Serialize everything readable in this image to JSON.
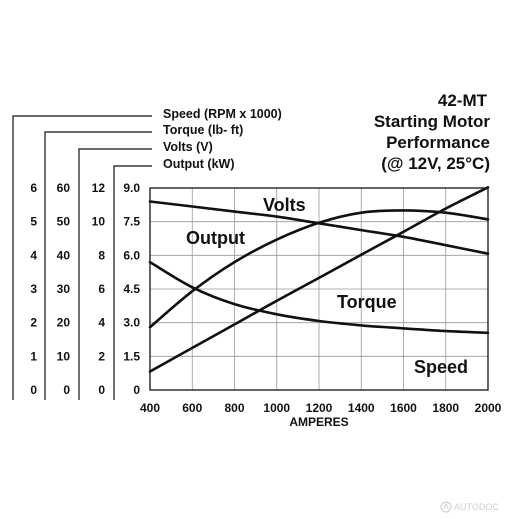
{
  "chart_data": {
    "type": "line",
    "title": [
      "42-MT",
      "Starting Motor",
      "Performance",
      "(@ 12V, 25°C)"
    ],
    "xlabel": "AMPERES",
    "x_ticks": [
      400,
      600,
      800,
      1000,
      1200,
      1400,
      1600,
      1800,
      2000
    ],
    "xlim": [
      400,
      2000
    ],
    "grid": true,
    "axes": [
      {
        "key": "speed",
        "label": "Speed (RPM x 1000)",
        "ticks": [
          "0",
          "1",
          "2",
          "3",
          "4",
          "5",
          "6"
        ]
      },
      {
        "key": "torque",
        "label": "Torque (lb- ft)",
        "ticks": [
          "0",
          "10",
          "20",
          "30",
          "40",
          "50",
          "60"
        ]
      },
      {
        "key": "volts",
        "label": "Volts (V)",
        "ticks": [
          "0",
          "2",
          "4",
          "6",
          "8",
          "10",
          "12"
        ]
      },
      {
        "key": "output",
        "label": "Output (kW)",
        "ticks": [
          "0",
          "1.5",
          "3.0",
          "4.5",
          "6.0",
          "7.5",
          "9.0"
        ]
      }
    ],
    "series": [
      {
        "name": "Volts",
        "axis": "volts",
        "x": [
          400,
          600,
          800,
          1000,
          1200,
          1400,
          1600,
          1800,
          2000
        ],
        "y": [
          11.2,
          10.9,
          10.6,
          10.3,
          9.9,
          9.5,
          9.1,
          8.6,
          8.1
        ]
      },
      {
        "name": "Output",
        "axis": "output",
        "x": [
          400,
          600,
          800,
          1000,
          1200,
          1400,
          1600,
          1800,
          2000
        ],
        "y": [
          2.8,
          4.4,
          5.7,
          6.7,
          7.45,
          7.9,
          8.0,
          7.9,
          7.6
        ]
      },
      {
        "name": "Torque",
        "axis": "torque",
        "x": [
          400,
          600,
          800,
          1000,
          1200,
          1400,
          1600,
          1800,
          2000
        ],
        "y": [
          5.5,
          12.5,
          19.5,
          26.5,
          33.3,
          40.2,
          47.0,
          53.9,
          60.2
        ]
      },
      {
        "name": "Speed",
        "axis": "speed",
        "x": [
          400,
          600,
          800,
          1000,
          1200,
          1400,
          1600,
          1800,
          2000
        ],
        "y": [
          3.8,
          3.05,
          2.55,
          2.25,
          2.05,
          1.92,
          1.83,
          1.75,
          1.7
        ]
      }
    ]
  },
  "watermark": "AUTODOC"
}
